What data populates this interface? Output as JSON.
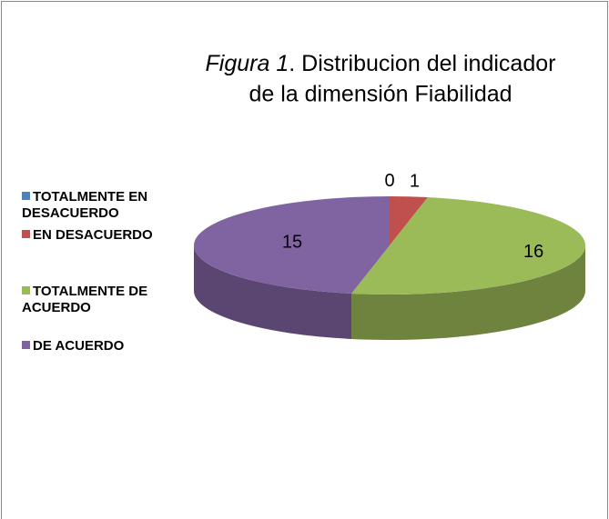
{
  "chart_data": {
    "type": "pie3d",
    "title": [
      "Figura 1",
      ". Distribucion del indicador",
      "de la dimensión Fiabilidad"
    ],
    "categories": [
      "TOTALMENTE EN DESACUERDO",
      "EN DESACUERDO",
      "TOTALMENTE DE ACUERDO",
      "DE ACUERDO"
    ],
    "values": [
      0,
      1,
      16,
      15
    ],
    "colors": [
      "#4f81bd",
      "#c0504d",
      "#9bbb59",
      "#8064a2"
    ],
    "legend": "left"
  }
}
